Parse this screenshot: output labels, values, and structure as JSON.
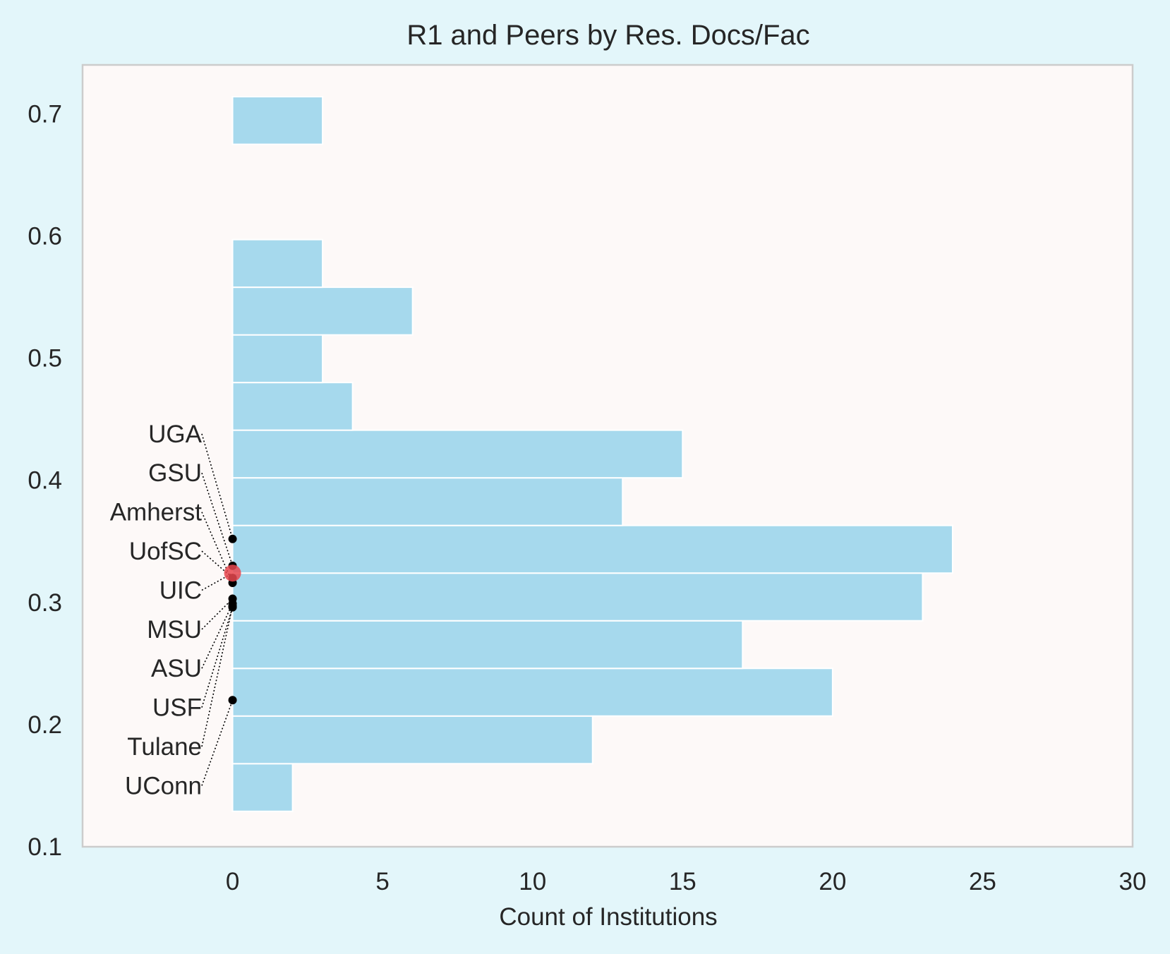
{
  "chart_data": {
    "type": "bar",
    "orientation": "horizontal-histogram",
    "title": "R1 and Peers by Res. Docs/Fac",
    "xlabel": "Count of Institutions",
    "ylabel": "",
    "xlim": [
      -5,
      30
    ],
    "ylim": [
      0.1,
      0.74
    ],
    "grid": false,
    "colors": {
      "figure_bg": "#e3f6fa",
      "plot_bg": "#fdf9f8",
      "bar": "#a6d9ed",
      "bar_edge": "#ffffff",
      "frame": "#cccccc",
      "text": "#262626",
      "highlight": "#e8474d",
      "marker": "#000000"
    },
    "x_ticks": [
      {
        "value": 0,
        "label": "0"
      },
      {
        "value": 5,
        "label": "5"
      },
      {
        "value": 10,
        "label": "10"
      },
      {
        "value": 15,
        "label": "15"
      },
      {
        "value": 20,
        "label": "20"
      },
      {
        "value": 25,
        "label": "25"
      },
      {
        "value": 30,
        "label": "30"
      }
    ],
    "y_ticks": [
      {
        "value": 0.1,
        "label": "0.1"
      },
      {
        "value": 0.2,
        "label": "0.2"
      },
      {
        "value": 0.3,
        "label": "0.3"
      },
      {
        "value": 0.4,
        "label": "0.4"
      },
      {
        "value": 0.5,
        "label": "0.5"
      },
      {
        "value": 0.6,
        "label": "0.6"
      },
      {
        "value": 0.7,
        "label": "0.7"
      }
    ],
    "bins": [
      {
        "y0": 0.129,
        "y1": 0.168,
        "count": 2
      },
      {
        "y0": 0.168,
        "y1": 0.207,
        "count": 12
      },
      {
        "y0": 0.207,
        "y1": 0.246,
        "count": 20
      },
      {
        "y0": 0.246,
        "y1": 0.285,
        "count": 17
      },
      {
        "y0": 0.285,
        "y1": 0.324,
        "count": 23
      },
      {
        "y0": 0.324,
        "y1": 0.363,
        "count": 24
      },
      {
        "y0": 0.363,
        "y1": 0.402,
        "count": 13
      },
      {
        "y0": 0.402,
        "y1": 0.441,
        "count": 15
      },
      {
        "y0": 0.441,
        "y1": 0.48,
        "count": 4
      },
      {
        "y0": 0.48,
        "y1": 0.519,
        "count": 3
      },
      {
        "y0": 0.519,
        "y1": 0.558,
        "count": 6
      },
      {
        "y0": 0.558,
        "y1": 0.597,
        "count": 3
      },
      {
        "y0": 0.597,
        "y1": 0.636,
        "count": 0
      },
      {
        "y0": 0.636,
        "y1": 0.675,
        "count": 0
      },
      {
        "y0": 0.675,
        "y1": 0.714,
        "count": 3
      }
    ],
    "annotations": [
      {
        "label": "UGA",
        "label_y": 0.438,
        "value": 0.352
      },
      {
        "label": "GSU",
        "label_y": 0.406,
        "value": 0.33
      },
      {
        "label": "Amherst",
        "label_y": 0.374,
        "value": 0.316
      },
      {
        "label": "UofSC",
        "label_y": 0.342,
        "value": 0.32
      },
      {
        "label": "UIC",
        "label_y": 0.31,
        "value": 0.324,
        "highlight": true
      },
      {
        "label": "MSU",
        "label_y": 0.278,
        "value": 0.303
      },
      {
        "label": "ASU",
        "label_y": 0.246,
        "value": 0.299
      },
      {
        "label": "USF",
        "label_y": 0.214,
        "value": 0.296
      },
      {
        "label": "Tulane",
        "label_y": 0.182,
        "value": 0.297
      },
      {
        "label": "UConn",
        "label_y": 0.15,
        "value": 0.22
      }
    ]
  }
}
